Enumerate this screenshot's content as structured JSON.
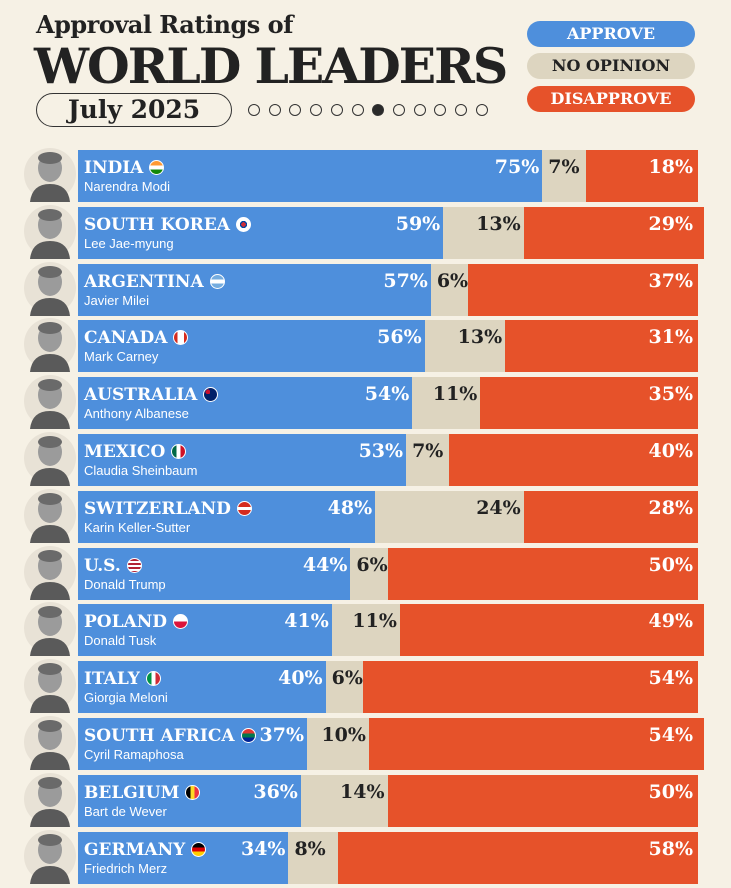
{
  "header": {
    "subtitle": "Approval Ratings of",
    "title": "WORLD LEADERS",
    "date": "July 2025"
  },
  "pager": {
    "count": 12,
    "active_index": 6
  },
  "chart_data": {
    "type": "bar",
    "stacked": true,
    "orientation": "horizontal",
    "categories": [
      "INDIA",
      "SOUTH KOREA",
      "ARGENTINA",
      "CANADA",
      "AUSTRALIA",
      "MEXICO",
      "SWITZERLAND",
      "U.S.",
      "POLAND",
      "ITALY",
      "SOUTH AFRICA",
      "BELGIUM",
      "GERMANY"
    ],
    "leaders": [
      "Narendra Modi",
      "Lee Jae-myung",
      "Javier Milei",
      "Mark Carney",
      "Anthony Albanese",
      "Claudia Sheinbaum",
      "Karin Keller-Sutter",
      "Donald Trump",
      "Donald Tusk",
      "Giorgia Meloni",
      "Cyril Ramaphosa",
      "Bart de Wever",
      "Friedrich Merz"
    ],
    "flags": [
      "india-flag-icon",
      "south-korea-flag-icon",
      "argentina-flag-icon",
      "canada-flag-icon",
      "australia-flag-icon",
      "mexico-flag-icon",
      "switzerland-flag-icon",
      "us-flag-icon",
      "poland-flag-icon",
      "italy-flag-icon",
      "south-africa-flag-icon",
      "belgium-flag-icon",
      "germany-flag-icon"
    ],
    "series": [
      {
        "name": "APPROVE",
        "color": "#4e8fdc",
        "values": [
          75,
          59,
          57,
          56,
          54,
          53,
          48,
          44,
          41,
          40,
          37,
          36,
          34
        ]
      },
      {
        "name": "NO OPINION",
        "color": "#ddd5c0",
        "values": [
          7,
          13,
          6,
          13,
          11,
          7,
          24,
          6,
          11,
          6,
          10,
          14,
          8
        ]
      },
      {
        "name": "DISAPPROVE",
        "color": "#e6522a",
        "values": [
          18,
          29,
          37,
          31,
          35,
          40,
          28,
          50,
          49,
          54,
          54,
          50,
          58
        ]
      }
    ],
    "value_suffix": "%",
    "xlim": [
      0,
      100
    ],
    "legend_position": "top-right"
  }
}
